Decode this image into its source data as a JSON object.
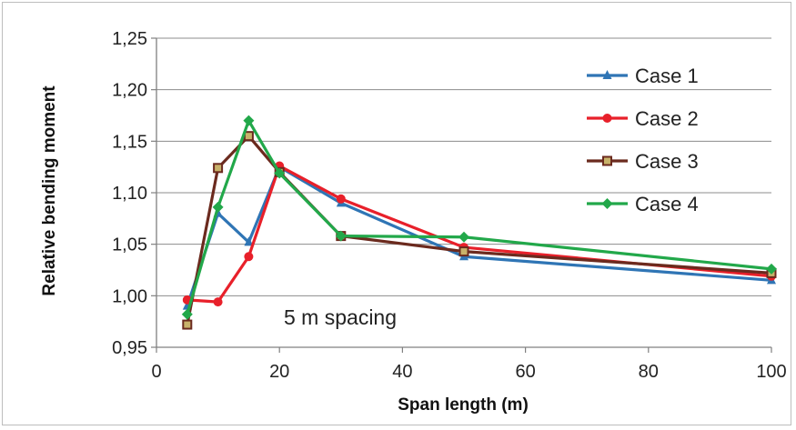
{
  "chart_data": {
    "type": "line",
    "title": "",
    "xlabel": "Span length (m)",
    "ylabel": "Relative bending moment",
    "xlim": [
      0,
      100
    ],
    "ylim": [
      0.95,
      1.25
    ],
    "x_ticks": [
      0,
      20,
      40,
      60,
      80,
      100
    ],
    "x_tick_labels": [
      "0",
      "20",
      "40",
      "60",
      "80",
      "100"
    ],
    "y_ticks": [
      0.95,
      1.0,
      1.05,
      1.1,
      1.15,
      1.2,
      1.25
    ],
    "y_tick_labels": [
      "0,95",
      "1,00",
      "1,05",
      "1,10",
      "1,15",
      "1,20",
      "1,25"
    ],
    "grid": "horizontal",
    "legend_position": "right",
    "annotation": "5 m spacing",
    "series": [
      {
        "name": "Case 1",
        "color": "#2f75b5",
        "marker": "triangle",
        "x": [
          5,
          10,
          15,
          20,
          30,
          50,
          100
        ],
        "y": [
          0.99,
          1.08,
          1.052,
          1.125,
          1.09,
          1.038,
          1.015
        ]
      },
      {
        "name": "Case 2",
        "color": "#e8202a",
        "marker": "circle",
        "x": [
          5,
          10,
          15,
          20,
          30,
          50,
          100
        ],
        "y": [
          0.996,
          0.994,
          1.038,
          1.126,
          1.094,
          1.047,
          1.019
        ]
      },
      {
        "name": "Case 3",
        "color": "#6b2a1e",
        "marker": "square",
        "x": [
          5,
          10,
          15,
          20,
          30,
          50,
          100
        ],
        "y": [
          0.972,
          1.124,
          1.155,
          1.12,
          1.058,
          1.043,
          1.022
        ]
      },
      {
        "name": "Case 4",
        "color": "#22a84a",
        "marker": "diamond",
        "x": [
          5,
          10,
          15,
          20,
          30,
          50,
          100
        ],
        "y": [
          0.982,
          1.086,
          1.17,
          1.119,
          1.058,
          1.057,
          1.026
        ]
      }
    ]
  }
}
